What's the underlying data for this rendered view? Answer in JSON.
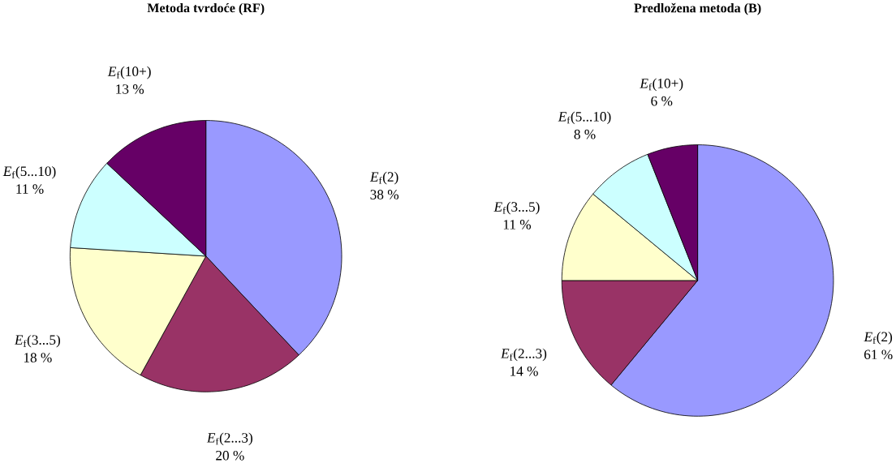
{
  "chart_data": [
    {
      "type": "pie",
      "title": "Metoda tvrdoće (RF)",
      "categories": [
        "*E*$_{f}$(2)",
        "*E*$_{f}$(2...3)",
        "*E*$_{f}$(3...5)",
        "*E*$_{f}$(5...10)",
        "*E*$_{f}$(10+)"
      ],
      "values": [
        38,
        20,
        18,
        11,
        13
      ],
      "value_labels": [
        "38 %",
        "20 %",
        "18 %",
        "11 %",
        "13 %"
      ],
      "colors": [
        "#9999ff",
        "#993366",
        "#ffffcc",
        "#ccffff",
        "#660066"
      ]
    },
    {
      "type": "pie",
      "title": "Predložena metoda (B)",
      "categories": [
        "*E*$_{f}$(2)",
        "*E*$_{f}$(2...3)",
        "*E*$_{f}$(3...5)",
        "*E*$_{f}$(5...10)",
        "*E*$_{f}$(10+)"
      ],
      "values": [
        61,
        14,
        11,
        8,
        6
      ],
      "value_labels": [
        "61 %",
        "14 %",
        "11 %",
        "8 %",
        "6 %"
      ],
      "colors": [
        "#9999ff",
        "#993366",
        "#ffffcc",
        "#ccffff",
        "#660066"
      ]
    }
  ]
}
